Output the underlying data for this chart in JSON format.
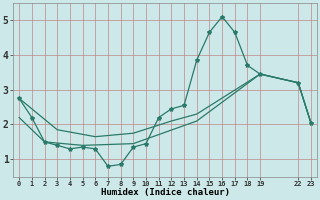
{
  "xlabel": "Humidex (Indice chaleur)",
  "bg_color": "#cce8e8",
  "line_color": "#2a7a6a",
  "xlim": [
    -0.5,
    23.5
  ],
  "ylim": [
    0.5,
    5.5
  ],
  "xticks": [
    0,
    1,
    2,
    3,
    4,
    5,
    6,
    7,
    8,
    9,
    10,
    11,
    12,
    13,
    14,
    15,
    16,
    17,
    18,
    19,
    22,
    23
  ],
  "yticks": [
    1,
    2,
    3,
    4,
    5
  ],
  "series1_x": [
    0,
    1,
    2,
    3,
    4,
    5,
    6,
    7,
    8,
    9,
    10,
    11,
    12,
    13,
    14,
    15,
    16,
    17,
    18,
    19,
    22,
    23
  ],
  "series1_y": [
    2.75,
    2.2,
    1.5,
    1.4,
    1.3,
    1.35,
    1.3,
    0.8,
    0.85,
    1.35,
    1.45,
    2.2,
    2.45,
    2.55,
    3.85,
    4.65,
    5.1,
    4.65,
    3.7,
    3.45,
    3.2,
    2.05
  ],
  "line2_x": [
    0,
    3,
    6,
    9,
    12,
    14,
    19,
    22,
    23
  ],
  "line2_y": [
    2.75,
    1.85,
    1.65,
    1.75,
    2.1,
    2.3,
    3.45,
    3.2,
    2.05
  ],
  "line3_x": [
    0,
    2,
    5,
    9,
    14,
    19,
    22,
    23
  ],
  "line3_y": [
    2.2,
    1.5,
    1.4,
    1.45,
    2.1,
    3.45,
    3.2,
    2.05
  ]
}
